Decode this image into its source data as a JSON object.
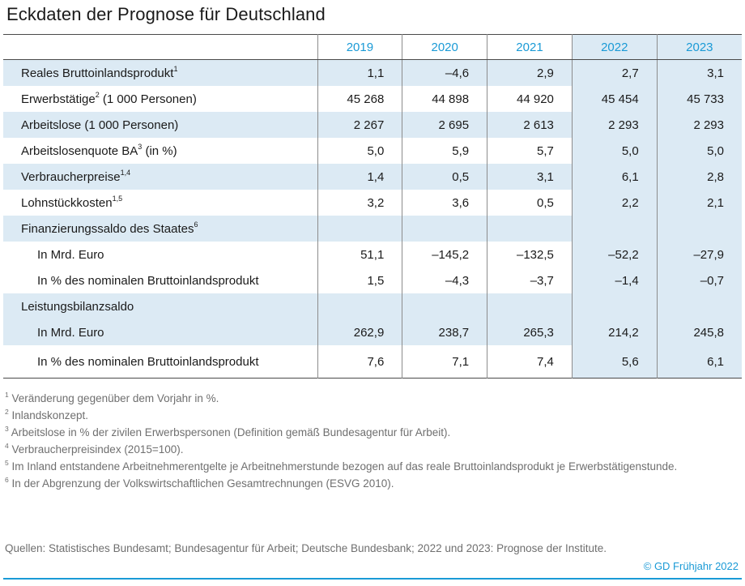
{
  "title": "Eckdaten der Prognose für Deutschland",
  "years": [
    "2019",
    "2020",
    "2021",
    "2022",
    "2023"
  ],
  "rows": [
    {
      "label": "Reales Bruttoinlandsprodukt",
      "sup": "1",
      "values": [
        "1,1",
        "–4,6",
        "2,9",
        "2,7",
        "3,1"
      ]
    },
    {
      "label": "Erwerbstätige",
      "sup": "2",
      "suffix": " (1 000 Personen)",
      "values": [
        "45 268",
        "44 898",
        "44 920",
        "45 454",
        "45 733"
      ]
    },
    {
      "label": "Arbeitslose (1 000 Personen)",
      "values": [
        "2 267",
        "2 695",
        "2 613",
        "2 293",
        "2 293"
      ]
    },
    {
      "label": "Arbeitslosenquote BA",
      "sup": "3",
      "suffix": " (in %)",
      "values": [
        "5,0",
        "5,9",
        "5,7",
        "5,0",
        "5,0"
      ]
    },
    {
      "label": "Verbraucherpreise",
      "sup": "1,4",
      "values": [
        "1,4",
        "0,5",
        "3,1",
        "6,1",
        "2,8"
      ]
    },
    {
      "label": "Lohnstückkosten",
      "sup": "1,5",
      "values": [
        "3,2",
        "3,6",
        "0,5",
        "2,2",
        "2,1"
      ]
    },
    {
      "label": "Finanzierungssaldo des Staates",
      "sup": "6",
      "values": [
        "",
        "",
        "",
        "",
        ""
      ]
    },
    {
      "label": "In Mrd. Euro",
      "values": [
        "51,1",
        "–145,2",
        "–132,5",
        "–52,2",
        "–27,9"
      ]
    },
    {
      "label": "In % des nominalen Bruttoinlandsprodukt",
      "values": [
        "1,5",
        "–4,3",
        "–3,7",
        "–1,4",
        "–0,7"
      ]
    },
    {
      "label": "Leistungsbilanzsaldo",
      "values": [
        "",
        "",
        "",
        "",
        ""
      ]
    },
    {
      "label": "In Mrd. Euro",
      "values": [
        "262,9",
        "238,7",
        "265,3",
        "214,2",
        "245,8"
      ]
    },
    {
      "label": "In % des nominalen Bruttoinlandsprodukt",
      "values": [
        "7,6",
        "7,1",
        "7,4",
        "5,6",
        "6,1"
      ]
    }
  ],
  "footnotes": [
    {
      "sup": "1",
      "text": " Veränderung gegenüber dem Vorjahr in %."
    },
    {
      "sup": "2",
      "text": " Inlandskonzept."
    },
    {
      "sup": "3",
      "text": " Arbeitslose in % der zivilen Erwerbspersonen (Definition gemäß Bundesagentur für Arbeit)."
    },
    {
      "sup": "4",
      "text": " Verbraucherpreisindex (2015=100)."
    },
    {
      "sup": "5",
      "text": " Im Inland entstandene Arbeitnehmerentgelte je Arbeitnehmerstunde bezogen auf das reale Bruttoinlandsprodukt je Erwerbstätigenstunde."
    },
    {
      "sup": "6",
      "text": " In der Abgrenzung der Volkswirtschaftlichen Gesamtrechnungen (ESVG 2010)."
    }
  ],
  "source": "Quellen: Statistisches Bundesamt; Bundesagentur für Arbeit; Deutsche Bundesbank; 2022 und 2023: Prognose der Institute.",
  "copyright": "© GD Frühjahr 2022",
  "colors": {
    "accent": "#1a9ad6",
    "shade": "#dceaf4",
    "note_text": "#6f6f6f"
  }
}
